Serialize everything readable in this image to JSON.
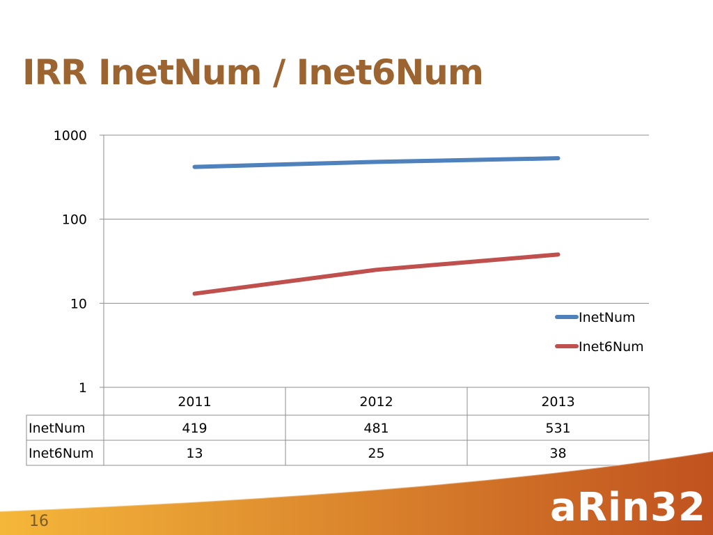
{
  "slide": {
    "title": "IRR InetNum / Inet6Num",
    "page_number": "16",
    "logo_text": "aRin32"
  },
  "colors": {
    "title": "#9b6430",
    "inetnum": "#4f81bd",
    "inet6num": "#c0504d",
    "footer_light": "#f5b73a",
    "footer_dark": "#c0521f"
  },
  "chart_data": {
    "type": "line",
    "categories": [
      "2011",
      "2012",
      "2013"
    ],
    "y_scale": "log",
    "ylim": [
      1,
      1000
    ],
    "y_ticks": [
      1,
      10,
      100,
      1000
    ],
    "grid": true,
    "legend_position": "right",
    "series": [
      {
        "name": "InetNum",
        "values": [
          419,
          481,
          531
        ],
        "color": "#4f81bd"
      },
      {
        "name": "Inet6Num",
        "values": [
          13,
          25,
          38
        ],
        "color": "#c0504d"
      }
    ],
    "data_table": {
      "rows": [
        {
          "label": "InetNum",
          "values": [
            "419",
            "481",
            "531"
          ]
        },
        {
          "label": "Inet6Num",
          "values": [
            "13",
            "25",
            "38"
          ]
        }
      ]
    }
  }
}
